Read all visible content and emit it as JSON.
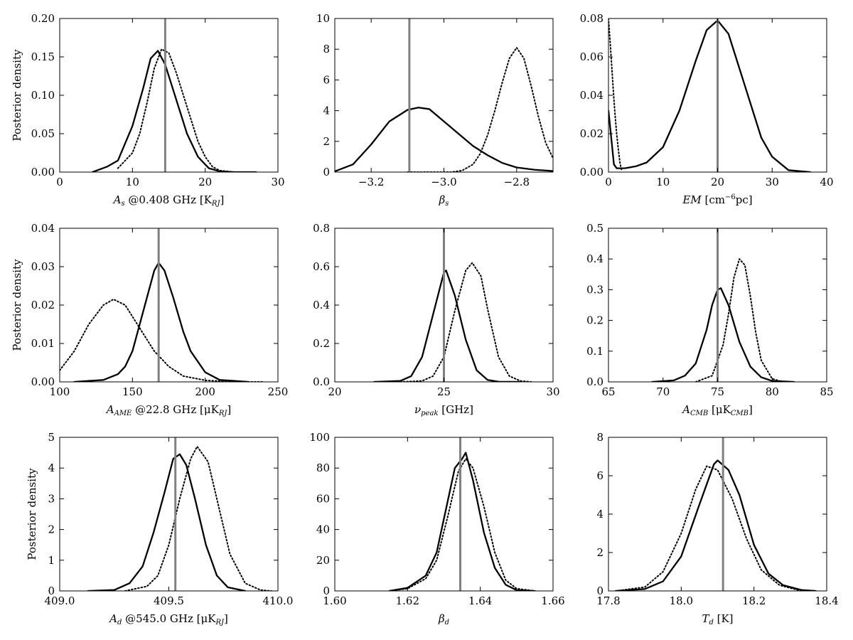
{
  "figure": {
    "ylabel": "Posterior density"
  },
  "chart_data": [
    {
      "type": "line",
      "xlabel": "A_s @0.408 GHz [K_RJ]",
      "xlabel_parts": [
        [
          "A",
          "i"
        ],
        [
          "s",
          "sub"
        ],
        [
          " @0.408 GHz [K",
          "n"
        ],
        [
          "RJ",
          "sub"
        ],
        [
          "]",
          "n"
        ]
      ],
      "xlim": [
        0,
        30
      ],
      "ylim": [
        0,
        0.2
      ],
      "xticks": [
        0,
        10,
        20,
        30
      ],
      "xtick_labels": [
        "0",
        "10",
        "20",
        "30"
      ],
      "yticks": [
        0,
        0.05,
        0.1,
        0.15,
        0.2
      ],
      "ytick_labels": [
        "0.00",
        "0.05",
        "0.10",
        "0.15",
        "0.20"
      ],
      "show_ylabel": true,
      "true_value": 14.5,
      "grid": false,
      "series": [
        {
          "style": "solid",
          "x": [
            4.5,
            6.5,
            8,
            10,
            11.5,
            12.5,
            13.5,
            14.5,
            15.5,
            16.5,
            17.5,
            19,
            20.5,
            22,
            24,
            27
          ],
          "y": [
            0,
            0.007,
            0.015,
            0.06,
            0.11,
            0.148,
            0.158,
            0.14,
            0.11,
            0.08,
            0.05,
            0.02,
            0.005,
            0.001,
            0,
            0
          ]
        },
        {
          "style": "dotted",
          "x": [
            8,
            10,
            11,
            12,
            13,
            14,
            15,
            16,
            17,
            18,
            19,
            20,
            21,
            22,
            24
          ],
          "y": [
            0.005,
            0.025,
            0.05,
            0.09,
            0.135,
            0.16,
            0.155,
            0.13,
            0.1,
            0.07,
            0.04,
            0.02,
            0.007,
            0.002,
            0
          ]
        }
      ]
    },
    {
      "type": "line",
      "xlabel": "β_s",
      "xlabel_parts": [
        [
          "β",
          "i"
        ],
        [
          "s",
          "sub"
        ]
      ],
      "xlim": [
        -3.3,
        -2.7
      ],
      "ylim": [
        0,
        10
      ],
      "xticks": [
        -3.2,
        -3.0,
        -2.8
      ],
      "xtick_labels": [
        "−3.2",
        "−3.0",
        "−2.8"
      ],
      "yticks": [
        0,
        2,
        4,
        6,
        8,
        10
      ],
      "ytick_labels": [
        "0",
        "2",
        "4",
        "6",
        "8",
        "10"
      ],
      "show_ylabel": false,
      "true_value": -3.095,
      "grid": false,
      "series": [
        {
          "style": "solid",
          "x": [
            -3.3,
            -3.25,
            -3.2,
            -3.15,
            -3.1,
            -3.07,
            -3.04,
            -3.0,
            -2.96,
            -2.92,
            -2.88,
            -2.84,
            -2.8,
            -2.75,
            -2.7
          ],
          "y": [
            0.05,
            0.5,
            1.8,
            3.3,
            4.05,
            4.2,
            4.1,
            3.3,
            2.5,
            1.7,
            1.1,
            0.6,
            0.3,
            0.15,
            0.07
          ]
        },
        {
          "style": "dotted",
          "x": [
            -3.1,
            -2.98,
            -2.95,
            -2.92,
            -2.9,
            -2.88,
            -2.86,
            -2.84,
            -2.82,
            -2.8,
            -2.78,
            -2.76,
            -2.74,
            -2.72,
            -2.7
          ],
          "y": [
            0,
            0,
            0.1,
            0.5,
            1.2,
            2.4,
            4.0,
            5.8,
            7.4,
            8.1,
            7.4,
            5.6,
            3.6,
            1.9,
            0.9
          ]
        }
      ]
    },
    {
      "type": "line",
      "xlabel": "EM [cm⁻⁶pc]",
      "xlabel_parts": [
        [
          "EM",
          "i"
        ],
        [
          " [cm",
          "n"
        ],
        [
          "−6",
          "sup"
        ],
        [
          "pc]",
          "n"
        ]
      ],
      "xlim": [
        0,
        40
      ],
      "ylim": [
        0,
        0.08
      ],
      "xticks": [
        0,
        10,
        20,
        30,
        40
      ],
      "xtick_labels": [
        "0",
        "10",
        "20",
        "30",
        "40"
      ],
      "yticks": [
        0,
        0.02,
        0.04,
        0.06,
        0.08
      ],
      "ytick_labels": [
        "0.00",
        "0.02",
        "0.04",
        "0.06",
        "0.08"
      ],
      "show_ylabel": false,
      "true_value": 20.0,
      "grid": false,
      "series": [
        {
          "style": "solid",
          "x": [
            0,
            0.5,
            1,
            1.5,
            3,
            5,
            7,
            10,
            13,
            16,
            18,
            20,
            22,
            25,
            28,
            30,
            33,
            37
          ],
          "y": [
            0.032,
            0.018,
            0.004,
            0.002,
            0.002,
            0.003,
            0.005,
            0.013,
            0.032,
            0.058,
            0.074,
            0.079,
            0.072,
            0.045,
            0.018,
            0.008,
            0.001,
            0
          ]
        },
        {
          "style": "dotted",
          "x": [
            0,
            0.3,
            0.6,
            0.9,
            1.2,
            1.5,
            1.8,
            2.1,
            2.4
          ],
          "y": [
            0.08,
            0.068,
            0.055,
            0.042,
            0.03,
            0.02,
            0.012,
            0.005,
            0.001
          ]
        }
      ]
    },
    {
      "type": "line",
      "xlabel": "A_AME @22.8 GHz [μK_RJ]",
      "xlabel_parts": [
        [
          "A",
          "i"
        ],
        [
          "AME",
          "sub"
        ],
        [
          " @22.8 GHz [μK",
          "n"
        ],
        [
          "RJ",
          "sub"
        ],
        [
          "]",
          "n"
        ]
      ],
      "xlim": [
        100,
        250
      ],
      "ylim": [
        0,
        0.04
      ],
      "xticks": [
        100,
        150,
        200,
        250
      ],
      "xtick_labels": [
        "100",
        "150",
        "200",
        "250"
      ],
      "yticks": [
        0,
        0.01,
        0.02,
        0.03,
        0.04
      ],
      "ytick_labels": [
        "0.00",
        "0.01",
        "0.02",
        "0.03",
        "0.04"
      ],
      "show_ylabel": true,
      "true_value": 168,
      "grid": false,
      "series": [
        {
          "style": "solid",
          "x": [
            110,
            130,
            140,
            145,
            150,
            155,
            160,
            165,
            168,
            172,
            178,
            185,
            190,
            200,
            210,
            230
          ],
          "y": [
            0,
            0.0005,
            0.002,
            0.004,
            0.008,
            0.015,
            0.022,
            0.029,
            0.031,
            0.029,
            0.022,
            0.013,
            0.008,
            0.0025,
            0.0005,
            0
          ]
        },
        {
          "style": "dotted",
          "x": [
            100,
            110,
            120,
            130,
            137,
            145,
            155,
            165,
            175,
            185,
            200,
            215,
            230,
            240
          ],
          "y": [
            0.003,
            0.008,
            0.015,
            0.02,
            0.0215,
            0.02,
            0.014,
            0.008,
            0.004,
            0.0015,
            0.0004,
            0.0001,
            0,
            0
          ]
        }
      ]
    },
    {
      "type": "line",
      "xlabel": "ν_peak [GHz]",
      "xlabel_parts": [
        [
          "ν",
          "i"
        ],
        [
          "peak",
          "sub"
        ],
        [
          " [GHz]",
          "n"
        ]
      ],
      "xlim": [
        20,
        30
      ],
      "ylim": [
        0,
        0.8
      ],
      "xticks": [
        20,
        25,
        30
      ],
      "xtick_labels": [
        "20",
        "25",
        "30"
      ],
      "yticks": [
        0,
        0.2,
        0.4,
        0.6,
        0.8
      ],
      "ytick_labels": [
        "0.0",
        "0.2",
        "0.4",
        "0.6",
        "0.8"
      ],
      "show_ylabel": false,
      "true_value": 25.0,
      "grid": false,
      "series": [
        {
          "style": "solid",
          "x": [
            21.8,
            23,
            23.5,
            24,
            24.5,
            25,
            25.1,
            25.5,
            26,
            26.5,
            27,
            27.5,
            28.5
          ],
          "y": [
            0,
            0.005,
            0.03,
            0.13,
            0.35,
            0.57,
            0.58,
            0.45,
            0.22,
            0.06,
            0.01,
            0.001,
            0
          ]
        },
        {
          "style": "dotted",
          "x": [
            23,
            24,
            24.5,
            25,
            25.5,
            26,
            26.3,
            26.7,
            27,
            27.5,
            28,
            28.5,
            29
          ],
          "y": [
            0,
            0.005,
            0.03,
            0.13,
            0.37,
            0.58,
            0.62,
            0.55,
            0.38,
            0.13,
            0.03,
            0.005,
            0
          ]
        }
      ]
    },
    {
      "type": "line",
      "xlabel": "A_CMB [μK_CMB]",
      "xlabel_parts": [
        [
          "A",
          "i"
        ],
        [
          "CMB",
          "sub"
        ],
        [
          " [μK",
          "n"
        ],
        [
          "CMB",
          "sub"
        ],
        [
          "]",
          "n"
        ]
      ],
      "xlim": [
        65,
        85
      ],
      "ylim": [
        0,
        0.5
      ],
      "xticks": [
        65,
        70,
        75,
        80,
        85
      ],
      "xtick_labels": [
        "65",
        "70",
        "75",
        "80",
        "85"
      ],
      "yticks": [
        0,
        0.1,
        0.2,
        0.3,
        0.4,
        0.5
      ],
      "ytick_labels": [
        "0.0",
        "0.1",
        "0.2",
        "0.3",
        "0.4",
        "0.5"
      ],
      "show_ylabel": false,
      "true_value": 75.0,
      "grid": false,
      "series": [
        {
          "style": "solid",
          "x": [
            69,
            71,
            72,
            73,
            74,
            74.5,
            75,
            75.3,
            76,
            77,
            78,
            79,
            80,
            82
          ],
          "y": [
            0,
            0.005,
            0.02,
            0.06,
            0.17,
            0.25,
            0.3,
            0.305,
            0.25,
            0.13,
            0.05,
            0.015,
            0.003,
            0
          ]
        },
        {
          "style": "dotted",
          "x": [
            73,
            74.5,
            75.5,
            76,
            76.5,
            77,
            77.5,
            78,
            78.5,
            79,
            80,
            81
          ],
          "y": [
            0,
            0.02,
            0.12,
            0.22,
            0.34,
            0.4,
            0.38,
            0.28,
            0.16,
            0.07,
            0.01,
            0
          ]
        }
      ]
    },
    {
      "type": "line",
      "xlabel": "A_d @545.0 GHz [μK_RJ]",
      "xlabel_parts": [
        [
          "A",
          "i"
        ],
        [
          "d",
          "sub"
        ],
        [
          " @545.0 GHz [μK",
          "n"
        ],
        [
          "RJ",
          "sub"
        ],
        [
          "]",
          "n"
        ]
      ],
      "xlim": [
        409.0,
        410.0
      ],
      "ylim": [
        0,
        5
      ],
      "xticks": [
        409.0,
        409.5,
        410.0
      ],
      "xtick_labels": [
        "409.0",
        "409.5",
        "410.0"
      ],
      "yticks": [
        0,
        1,
        2,
        3,
        4,
        5
      ],
      "ytick_labels": [
        "0",
        "1",
        "2",
        "3",
        "4",
        "5"
      ],
      "show_ylabel": true,
      "true_value": 409.53,
      "grid": false,
      "series": [
        {
          "style": "solid",
          "x": [
            409.13,
            409.25,
            409.32,
            409.38,
            409.43,
            409.48,
            409.52,
            409.55,
            409.58,
            409.62,
            409.67,
            409.72,
            409.77,
            409.85
          ],
          "y": [
            0,
            0.03,
            0.25,
            0.8,
            1.9,
            3.2,
            4.3,
            4.45,
            4.1,
            3.0,
            1.5,
            0.5,
            0.12,
            0
          ]
        },
        {
          "style": "dotted",
          "x": [
            409.3,
            409.4,
            409.45,
            409.5,
            409.55,
            409.6,
            409.63,
            409.68,
            409.73,
            409.78,
            409.85,
            409.92,
            409.97
          ],
          "y": [
            0,
            0.15,
            0.5,
            1.5,
            3.0,
            4.3,
            4.7,
            4.2,
            2.7,
            1.2,
            0.25,
            0.03,
            0
          ]
        }
      ]
    },
    {
      "type": "line",
      "xlabel": "β_d",
      "xlabel_parts": [
        [
          "β",
          "i"
        ],
        [
          "d",
          "sub"
        ]
      ],
      "xlim": [
        1.6,
        1.66
      ],
      "ylim": [
        0,
        100
      ],
      "xticks": [
        1.6,
        1.62,
        1.64,
        1.66
      ],
      "xtick_labels": [
        "1.60",
        "1.62",
        "1.64",
        "1.66"
      ],
      "yticks": [
        0,
        20,
        40,
        60,
        80,
        100
      ],
      "ytick_labels": [
        "0",
        "20",
        "40",
        "60",
        "80",
        "100"
      ],
      "show_ylabel": false,
      "true_value": 1.6345,
      "grid": false,
      "series": [
        {
          "style": "solid",
          "x": [
            1.615,
            1.62,
            1.625,
            1.628,
            1.631,
            1.633,
            1.635,
            1.636,
            1.638,
            1.641,
            1.644,
            1.647,
            1.65,
            1.655
          ],
          "y": [
            0,
            2,
            10,
            25,
            58,
            80,
            86,
            90,
            72,
            38,
            15,
            4,
            0.5,
            0
          ]
        },
        {
          "style": "dotted",
          "x": [
            1.615,
            1.62,
            1.625,
            1.628,
            1.631,
            1.634,
            1.636,
            1.638,
            1.641,
            1.644,
            1.647,
            1.65,
            1.655
          ],
          "y": [
            0,
            1.5,
            8,
            20,
            48,
            78,
            86,
            80,
            55,
            25,
            7,
            1.5,
            0
          ]
        }
      ]
    },
    {
      "type": "line",
      "xlabel": "T_d [K]",
      "xlabel_parts": [
        [
          "T",
          "i"
        ],
        [
          "d",
          "sub"
        ],
        [
          " [K]",
          "n"
        ]
      ],
      "xlim": [
        17.8,
        18.4
      ],
      "ylim": [
        0,
        8
      ],
      "xticks": [
        17.8,
        18.0,
        18.2,
        18.4
      ],
      "xtick_labels": [
        "17.8",
        "18.0",
        "18.2",
        "18.4"
      ],
      "yticks": [
        0,
        2,
        4,
        6,
        8
      ],
      "ytick_labels": [
        "0",
        "2",
        "4",
        "6",
        "8"
      ],
      "show_ylabel": false,
      "true_value": 18.115,
      "grid": false,
      "series": [
        {
          "style": "solid",
          "x": [
            17.82,
            17.9,
            17.95,
            18.0,
            18.05,
            18.09,
            18.1,
            18.13,
            18.16,
            18.2,
            18.24,
            18.28,
            18.33,
            18.37
          ],
          "y": [
            0,
            0.1,
            0.5,
            1.8,
            4.5,
            6.6,
            6.8,
            6.3,
            5.0,
            2.4,
            0.9,
            0.3,
            0.05,
            0
          ]
        },
        {
          "style": "dotted",
          "x": [
            17.82,
            17.9,
            17.95,
            18.0,
            18.04,
            18.07,
            18.1,
            18.14,
            18.18,
            18.22,
            18.27,
            18.32,
            18.37
          ],
          "y": [
            0,
            0.2,
            1.0,
            3.0,
            5.3,
            6.5,
            6.3,
            4.8,
            2.7,
            1.1,
            0.3,
            0.05,
            0
          ]
        }
      ]
    }
  ]
}
